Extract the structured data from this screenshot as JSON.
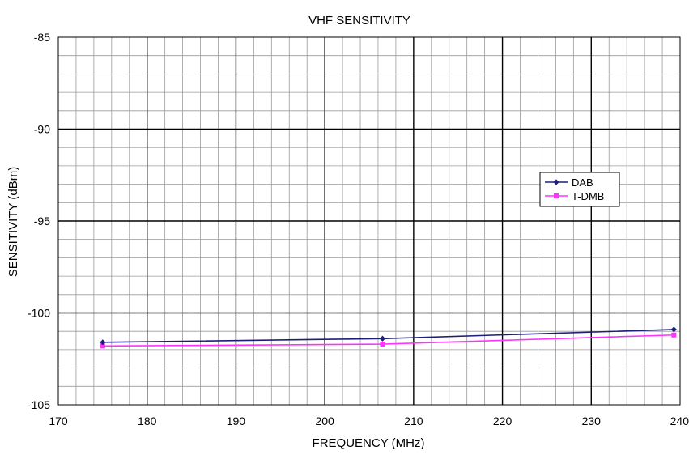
{
  "chart_data": {
    "type": "line",
    "title": "VHF SENSITIVITY",
    "xlabel": "FREQUENCY (MHz)",
    "ylabel": "SENSITIVITY (dBm)",
    "xlim": [
      170,
      240
    ],
    "ylim": [
      -105,
      -85
    ],
    "x_ticks": [
      "170",
      "180",
      "190",
      "200",
      "210",
      "220",
      "230",
      "240"
    ],
    "y_ticks": [
      "-85",
      "-90",
      "-95",
      "-100",
      "-105"
    ],
    "grid": true,
    "legend_position": "right",
    "series": [
      {
        "name": "DAB",
        "color": "#1f1f7a",
        "marker": "diamond",
        "x": [
          175,
          206.5,
          239.3
        ],
        "y": [
          -101.6,
          -101.4,
          -100.9
        ]
      },
      {
        "name": "T-DMB",
        "color": "#ff33ff",
        "marker": "square",
        "x": [
          175,
          206.5,
          239.3
        ],
        "y": [
          -101.8,
          -101.7,
          -101.2
        ]
      }
    ]
  }
}
